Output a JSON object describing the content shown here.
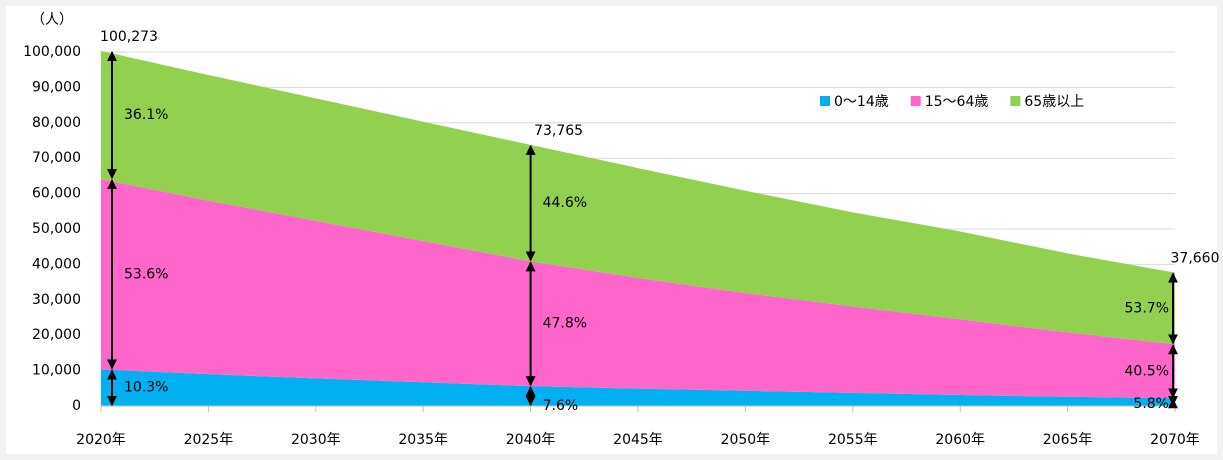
{
  "chart_data": {
    "type": "stacked_area",
    "y_label": "（人）",
    "categories": [
      "2020年",
      "2025年",
      "2030年",
      "2035年",
      "2040年",
      "2045年",
      "2050年",
      "2055年",
      "2060年",
      "2065年",
      "2070年"
    ],
    "series": [
      {
        "name": "0～14歳",
        "color": "#00b0f0",
        "values": [
          10328,
          9000,
          7800,
          6700,
          5606,
          4900,
          4300,
          3700,
          3100,
          2600,
          2184
        ],
        "share_values": [
          10.3,
          7.6,
          5.8
        ],
        "share_labels": [
          "10.3%",
          "7.6%",
          "5.8%"
        ]
      },
      {
        "name": "15～64歳",
        "color": "#ff66cc",
        "values": [
          53746,
          49000,
          44500,
          39900,
          35260,
          31300,
          27600,
          24400,
          21400,
          18200,
          15252
        ],
        "share_values": [
          53.6,
          47.8,
          40.5
        ],
        "share_labels": [
          "53.6%",
          "47.8%",
          "40.5%"
        ]
      },
      {
        "name": "65歳以上",
        "color": "#92d050",
        "values": [
          36199,
          35500,
          34600,
          33700,
          32899,
          31000,
          28900,
          26600,
          24800,
          22300,
          20223
        ],
        "share_values": [
          36.1,
          44.6,
          53.7
        ],
        "share_labels": [
          "36.1%",
          "44.6%",
          "53.7%"
        ]
      }
    ],
    "share_at": [
      "2020年",
      "2040年",
      "2070年"
    ],
    "totals": {
      "values": [
        100273,
        73765,
        37660
      ],
      "labels": [
        "100,273",
        "73,765",
        "37,660"
      ]
    },
    "ylim": [
      0,
      100000
    ],
    "yticks": [
      0,
      {
        "value": 10000,
        "label": "10,000"
      },
      {
        "value": 20000,
        "label": "20,000"
      },
      {
        "value": 30000,
        "label": "30,000"
      },
      {
        "value": 40000,
        "label": "40,000"
      },
      {
        "value": 50000,
        "label": "50,000"
      },
      {
        "value": 60000,
        "label": "60,000"
      },
      {
        "value": 70000,
        "label": "70,000"
      },
      {
        "value": 80000,
        "label": "80,000"
      },
      {
        "value": 90000,
        "label": "90,000"
      },
      {
        "value": 100000,
        "label": "100,000"
      }
    ],
    "grid": true
  }
}
